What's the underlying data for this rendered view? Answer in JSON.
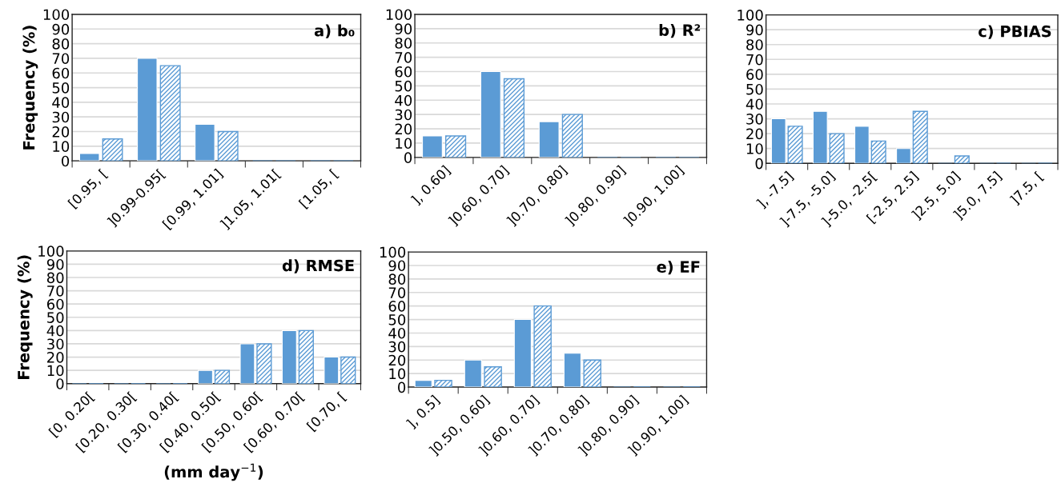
{
  "chart_data": [
    {
      "type": "bar",
      "title": "a) b₀",
      "ylabel": "Frequency (%)",
      "categories": [
        "[0.95, [",
        "]0.99-0.95[",
        "[0.99, 1.01]",
        "]1.05, 1.01[",
        "[1.05, ["
      ],
      "series": [
        {
          "color": "#5b9bd5",
          "values": [
            5,
            70,
            25,
            0,
            0
          ]
        },
        {
          "color": "#5b9bd5",
          "values": [
            15,
            65,
            20,
            0,
            0
          ]
        }
      ],
      "ylim": [
        0,
        100
      ],
      "yticks": [
        0,
        10,
        20,
        30,
        40,
        50,
        60,
        70,
        80,
        90,
        100
      ],
      "grid": "y"
    },
    {
      "type": "bar",
      "title": "b) R²",
      "categories": [
        "], 0.60]",
        "]0.60, 0.70]",
        "]0.70, 0.80]",
        "]0.80, 0.90]",
        "]0.90, 1.00]"
      ],
      "series": [
        {
          "color": "#5b9bd5",
          "values": [
            15,
            60,
            25,
            0,
            0
          ]
        },
        {
          "color": "#5b9bd5",
          "values": [
            15,
            55,
            30,
            0,
            0
          ]
        }
      ],
      "ylim": [
        0,
        100
      ],
      "yticks": [
        0,
        10,
        20,
        30,
        40,
        50,
        60,
        70,
        80,
        90,
        100
      ],
      "grid": "y"
    },
    {
      "type": "bar",
      "title": "c) PBIAS",
      "categories": [
        "], -7.5]",
        "]-7.5, -5.0]",
        "]-5.0, -2.5[",
        "[-2.5, 2.5]",
        "]2.5, 5.0]",
        "]5.0, 7.5]",
        "]7.5, ["
      ],
      "series": [
        {
          "color": "#5b9bd5",
          "values": [
            30,
            35,
            25,
            10,
            0,
            0,
            0
          ]
        },
        {
          "color": "#5b9bd5",
          "values": [
            25,
            20,
            15,
            35,
            5,
            0,
            0
          ]
        }
      ],
      "ylim": [
        0,
        100
      ],
      "yticks": [
        0,
        10,
        20,
        30,
        40,
        50,
        60,
        70,
        80,
        90,
        100
      ],
      "grid": "y"
    },
    {
      "type": "bar",
      "title": "d) RMSE",
      "ylabel": "Frequency (%)",
      "xlabel": "(mm day$^{−1}$)",
      "categories": [
        "[0, 0.20[",
        "[0.20, 0.30[",
        "[0.30, 0.40[",
        "[0.40, 0.50[",
        "[0.50, 0.60[",
        "[0.60, 0.70[",
        "[0.70, ["
      ],
      "series": [
        {
          "color": "#5b9bd5",
          "values": [
            0,
            0,
            0,
            10,
            30,
            40,
            20
          ]
        },
        {
          "color": "#5b9bd5",
          "values": [
            0,
            0,
            0,
            10,
            30,
            40,
            20
          ]
        }
      ],
      "ylim": [
        0,
        100
      ],
      "yticks": [
        0,
        10,
        20,
        30,
        40,
        50,
        60,
        70,
        80,
        90,
        100
      ],
      "grid": "y"
    },
    {
      "type": "bar",
      "title": "e) EF",
      "categories": [
        "], 0.5]",
        "]0.50, 0.60]",
        "]0.60, 0.70]",
        "]0.70, 0.80]",
        "]0.80, 0.90]",
        "]0.90, 1.00]"
      ],
      "series": [
        {
          "color": "#5b9bd5",
          "values": [
            5,
            20,
            50,
            25,
            0,
            0
          ]
        },
        {
          "color": "#5b9bd5",
          "values": [
            5,
            15,
            60,
            20,
            0,
            0
          ]
        }
      ],
      "ylim": [
        0,
        100
      ],
      "yticks": [
        0,
        10,
        20,
        30,
        40,
        50,
        60,
        70,
        80,
        90,
        100
      ],
      "grid": "y"
    }
  ]
}
